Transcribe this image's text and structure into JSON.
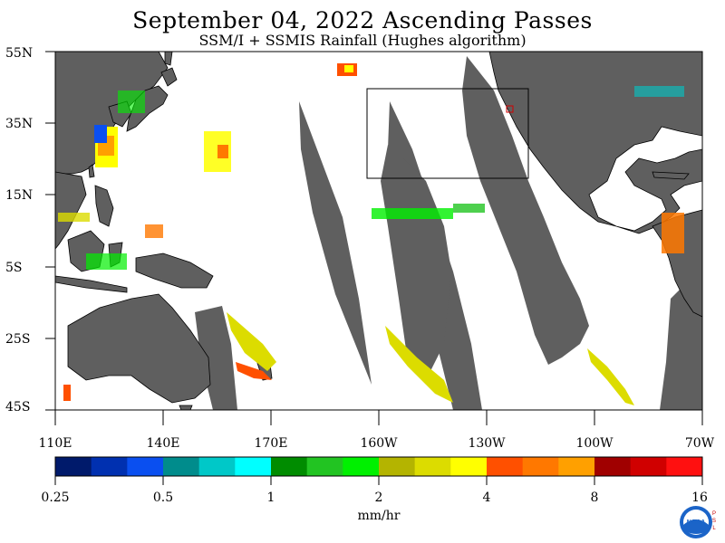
{
  "header": {
    "title": "September 04, 2022  Ascending Passes",
    "subtitle": "SSM/I + SSMIS Rainfall (Hughes algorithm)"
  },
  "axes": {
    "lat_labels": [
      "55N",
      "35N",
      "15N",
      "5S",
      "25S",
      "45S"
    ],
    "lon_labels": [
      "110E",
      "140E",
      "170E",
      "160W",
      "130W",
      "100W",
      "70W"
    ]
  },
  "colorbar": {
    "colors": [
      "#001a6b",
      "#0030b0",
      "#0a4ff0",
      "#008c8c",
      "#00c8c8",
      "#00ffff",
      "#008c00",
      "#22c422",
      "#00f000",
      "#b4b400",
      "#dcdc00",
      "#ffff00",
      "#ff5000",
      "#ff7800",
      "#ffa000",
      "#a00000",
      "#d00000",
      "#ff1010"
    ],
    "tick_labels": [
      "0.25",
      "0.5",
      "1",
      "2",
      "4",
      "8",
      "16"
    ],
    "units": "mm/hr"
  },
  "map_colors": {
    "land": "#5f5f5f",
    "no_data": "#5f5f5f",
    "ocean": "#ffffff"
  },
  "logo": {
    "name": "NOAA",
    "side_text": "PSL"
  }
}
